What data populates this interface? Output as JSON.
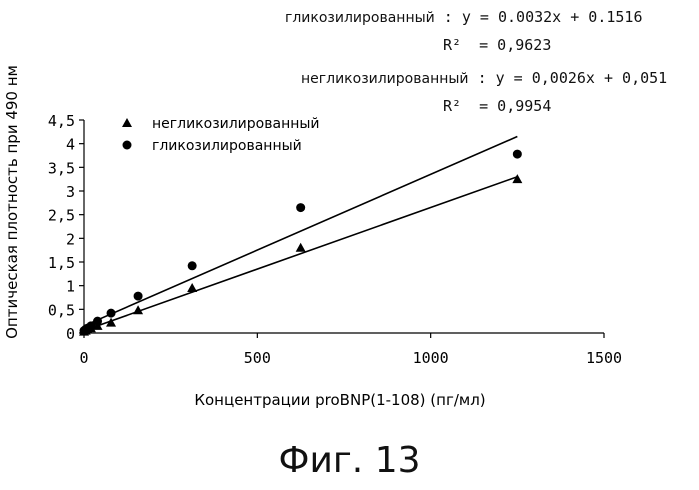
{
  "equations": {
    "glyco": {
      "label": "гликозилированный",
      "formula": ": y = 0.0032x + 0.1516",
      "r2_label": "R²",
      "r2": "= 0,9623"
    },
    "nonglyco": {
      "label": "негликозилированный",
      "formula": ": y = 0,0026x + 0,051",
      "r2_label": "R²",
      "r2": "= 0,9954"
    }
  },
  "figure_caption": "Фиг. 13",
  "chart_data": {
    "type": "scatter",
    "title": "",
    "xlabel": "Концентрации proBNP(1-108) (пг/мл)",
    "ylabel": "Оптическая плотность при 490 нм",
    "xlim": [
      0,
      1500
    ],
    "ylim": [
      0,
      4.5
    ],
    "x_ticks": [
      0,
      500,
      1000,
      1500
    ],
    "x_tick_labels": [
      "0",
      "500",
      "1000",
      "1500"
    ],
    "y_ticks": [
      0,
      0.5,
      1,
      1.5,
      2,
      2.5,
      3,
      3.5,
      4,
      4.5
    ],
    "y_tick_labels": [
      "0",
      "0,5",
      "1",
      "1,5",
      "2",
      "2,5",
      "3",
      "3,5",
      "4",
      "4,5"
    ],
    "grid": false,
    "legend_position": "top-left",
    "series": [
      {
        "name": "негликозилированный",
        "marker": "triangle",
        "color": "#000000",
        "x": [
          0,
          5,
          10,
          20,
          39,
          78,
          156,
          312,
          625,
          1250
        ],
        "y": [
          0.03,
          0.05,
          0.08,
          0.1,
          0.15,
          0.22,
          0.48,
          0.95,
          1.8,
          3.25
        ],
        "trendline": {
          "slope": 0.0026,
          "intercept": 0.051,
          "x_range": [
            0,
            1250
          ]
        }
      },
      {
        "name": "гликозилированный",
        "marker": "circle",
        "color": "#000000",
        "x": [
          0,
          5,
          10,
          20,
          39,
          78,
          156,
          312,
          625,
          1250
        ],
        "y": [
          0.05,
          0.08,
          0.1,
          0.15,
          0.25,
          0.42,
          0.78,
          1.42,
          2.65,
          3.78
        ],
        "trendline": {
          "slope": 0.0032,
          "intercept": 0.1516,
          "x_range": [
            0,
            1250
          ]
        }
      }
    ]
  }
}
